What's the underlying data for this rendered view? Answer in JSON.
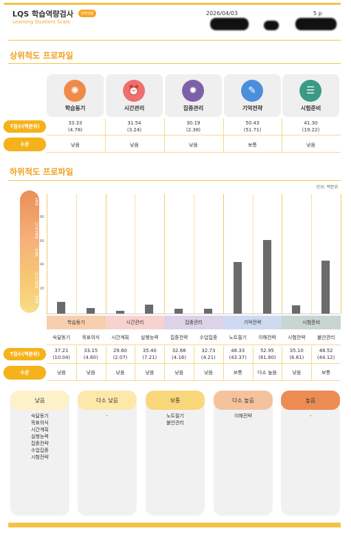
{
  "header": {
    "brand": "LQS 학습역량검사",
    "badge": "대학생용",
    "tagline": "Learning Quotient Scale",
    "date": "2026/04/03",
    "page": "5 p"
  },
  "upper": {
    "title": "상위척도 프로파일",
    "row_score_label": "T점수(백분위)",
    "row_level_label": "수준",
    "categories": [
      {
        "name": "학습동기",
        "score": "33.33",
        "pct": "(4.78)",
        "level": "낮음",
        "color": "#f08a48",
        "icon": "brain-icon"
      },
      {
        "name": "시간관리",
        "score": "31.54",
        "pct": "(3.24)",
        "level": "낮음",
        "color": "#ee6f6f",
        "icon": "alarm-clock-icon"
      },
      {
        "name": "집중관리",
        "score": "30.19",
        "pct": "(2.38)",
        "level": "낮음",
        "color": "#7d61a8",
        "icon": "lightbulb-icon"
      },
      {
        "name": "기억전략",
        "score": "50.43",
        "pct": "(51.71)",
        "level": "보통",
        "color": "#4a8fdc",
        "icon": "pencil-icon"
      },
      {
        "name": "시험준비",
        "score": "41.30",
        "pct": "(19.22)",
        "level": "낮음",
        "color": "#3a9a86",
        "icon": "checklist-icon"
      }
    ]
  },
  "lower": {
    "title": "하위척도 프로파일",
    "unit": "단위: 백분위",
    "scale_labels": [
      "높음",
      "다소높음",
      "보통",
      "다소낮음",
      "낮음"
    ],
    "row_score_label": "T점수(백분위)",
    "row_level_label": "수준",
    "groups": [
      {
        "name": "학습동기",
        "color": "#f7cfae"
      },
      {
        "name": "시간관리",
        "color": "#f8d2cf"
      },
      {
        "name": "집중관리",
        "color": "#dcd3e8"
      },
      {
        "name": "기억전략",
        "color": "#cfd9f1"
      },
      {
        "name": "시험준비",
        "color": "#c9d5d2"
      }
    ],
    "subscales": [
      {
        "name": "숙달동기",
        "score": "37.21",
        "pct": "(10.04)",
        "level": "낮음"
      },
      {
        "name": "목표의식",
        "score": "33.15",
        "pct": "(4.60)",
        "level": "낮음"
      },
      {
        "name": "시간계획",
        "score": "29.60",
        "pct": "(2.07)",
        "level": "낮음"
      },
      {
        "name": "실행능력",
        "score": "35.40",
        "pct": "(7.21)",
        "level": "낮음"
      },
      {
        "name": "집중전략",
        "score": "32.68",
        "pct": "(4.16)",
        "level": "낮음"
      },
      {
        "name": "수업집중",
        "score": "32.73",
        "pct": "(4.21)",
        "level": "낮음"
      },
      {
        "name": "노트필기",
        "score": "48.33",
        "pct": "(43.37)",
        "level": "보통"
      },
      {
        "name": "이해전략",
        "score": "52.95",
        "pct": "(61.60)",
        "level": "다소 높음"
      },
      {
        "name": "시험전략",
        "score": "35.10",
        "pct": "(6.81)",
        "level": "낮음"
      },
      {
        "name": "불안관리",
        "score": "48.52",
        "pct": "(44.12)",
        "level": "보통"
      }
    ]
  },
  "chart_data": {
    "type": "bar",
    "categories": [
      "숙달동기",
      "목표의식",
      "시간계획",
      "실행능력",
      "집중전략",
      "수업집중",
      "노트필기",
      "이해전략",
      "시험전략",
      "불안관리"
    ],
    "values": [
      10.04,
      4.6,
      2.07,
      7.21,
      4.16,
      4.21,
      43.37,
      61.6,
      6.81,
      44.12
    ],
    "y_ticks": [
      "20",
      "40",
      "60",
      "80"
    ],
    "ylim": [
      0,
      100
    ],
    "ylabel": "",
    "xlabel": ""
  },
  "levels": [
    {
      "name": "낮음",
      "color": "#fdf1c9",
      "items": [
        "숙달동기",
        "목표의식",
        "시간계획",
        "실행능력",
        "집중전략",
        "수업집중",
        "시험전략"
      ]
    },
    {
      "name": "다소 낮음",
      "color": "#fde8a9",
      "items": [
        "-"
      ]
    },
    {
      "name": "보통",
      "color": "#f9d87b",
      "items": [
        "노트필기",
        "불안관리"
      ]
    },
    {
      "name": "다소 높음",
      "color": "#f4c39e",
      "items": [
        "이해전략"
      ]
    },
    {
      "name": "높음",
      "color": "#ec8c53",
      "items": [
        "-"
      ]
    }
  ]
}
